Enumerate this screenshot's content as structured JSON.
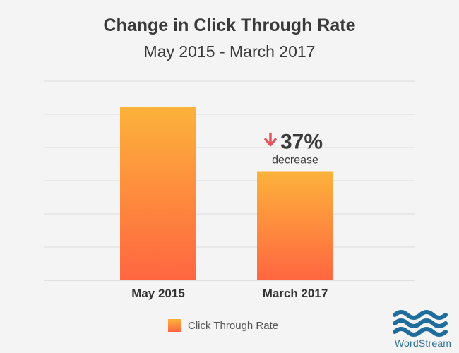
{
  "colors": {
    "background": "#f4f4f4",
    "bar_top": "#fcb23b",
    "bar_bottom": "#ff6640",
    "grid": "#dddddd",
    "arrow": "#e5535a",
    "logo_blue": "#1f6d9c"
  },
  "chart_data": {
    "type": "bar",
    "title": "Change in Click Through Rate",
    "subtitle": "May 2015 - March 2017",
    "categories": [
      "May 2015",
      "March 2017"
    ],
    "series": [
      {
        "name": "Click Through Rate",
        "values": [
          100,
          63
        ]
      }
    ],
    "ylim": [
      0,
      115
    ],
    "grid": true,
    "legend": "bottom-center",
    "annotation": {
      "category": "March 2017",
      "value": "37%",
      "text": "decrease",
      "icon": "arrow-down-icon"
    }
  },
  "logo": {
    "text": "WordStream",
    "icon": "waves-icon"
  }
}
